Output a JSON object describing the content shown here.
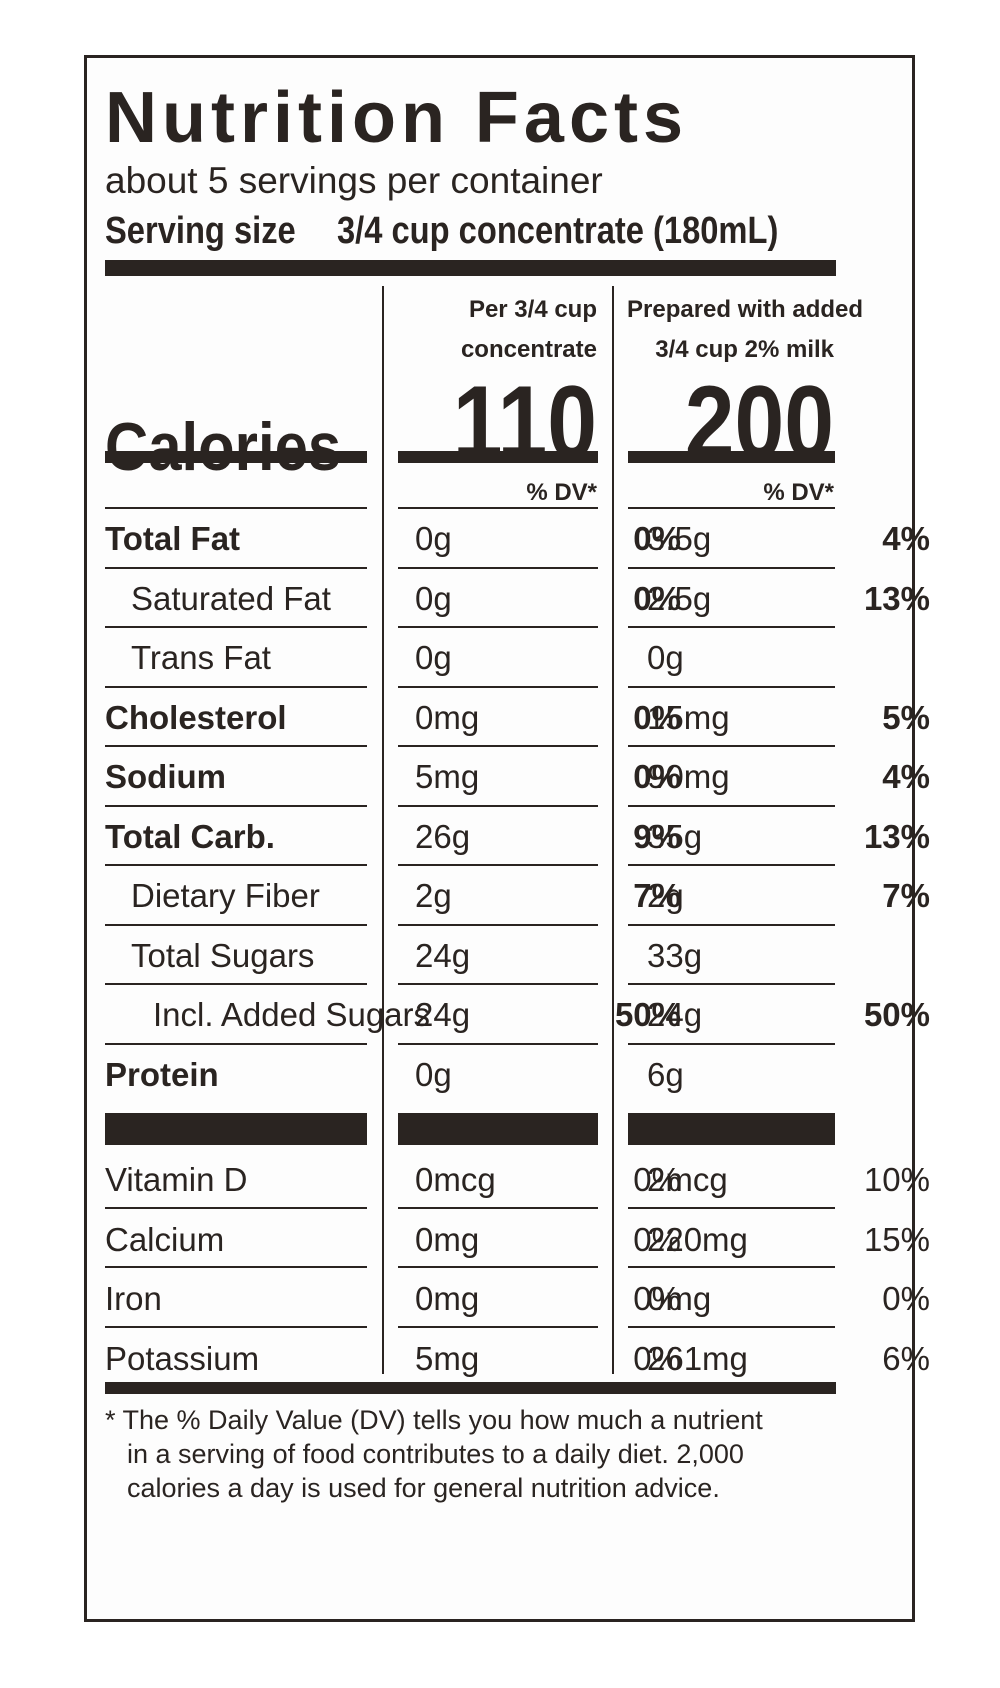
{
  "title": "Nutrition Facts",
  "servings_per_container": "about 5 servings per container",
  "serving_size": {
    "label": "Serving size",
    "value": "3/4 cup concentrate (180mL)"
  },
  "columns": [
    {
      "line1": "Per 3/4 cup",
      "line2": "concentrate",
      "calories": "110"
    },
    {
      "line1": "Prepared with added",
      "line2": "3/4 cup 2% milk",
      "calories": "200"
    }
  ],
  "calories_label": "Calories",
  "dv_header": "% DV*",
  "nutrients": [
    {
      "name": "Total Fat",
      "style": "bold",
      "c1_amount": "0g",
      "c1_dv": "0%",
      "c2_amount": "3.5g",
      "c2_dv": "4%"
    },
    {
      "name": "Saturated Fat",
      "style": "indent1",
      "c1_amount": "0g",
      "c1_dv": "0%",
      "c2_amount": "2.5g",
      "c2_dv": "13%"
    },
    {
      "name": "Trans Fat",
      "style": "indent1",
      "c1_amount": "0g",
      "c1_dv": "",
      "c2_amount": "0g",
      "c2_dv": ""
    },
    {
      "name": "Cholesterol",
      "style": "bold",
      "c1_amount": "0mg",
      "c1_dv": "0%",
      "c2_amount": "15mg",
      "c2_dv": "5%"
    },
    {
      "name": "Sodium",
      "style": "bold",
      "c1_amount": "5mg",
      "c1_dv": "0%",
      "c2_amount": "90mg",
      "c2_dv": "4%"
    },
    {
      "name": "Total Carb.",
      "style": "bold",
      "c1_amount": "26g",
      "c1_dv": "9%",
      "c2_amount": "35g",
      "c2_dv": "13%"
    },
    {
      "name": "Dietary Fiber",
      "style": "indent1",
      "c1_amount": "2g",
      "c1_dv": "7%",
      "c2_amount": "2g",
      "c2_dv": "7%"
    },
    {
      "name": "Total Sugars",
      "style": "indent1",
      "c1_amount": "24g",
      "c1_dv": "",
      "c2_amount": "33g",
      "c2_dv": ""
    },
    {
      "name": "Incl. Added Sugars",
      "style": "indent2",
      "c1_amount": "24g",
      "c1_dv": "50%",
      "c2_amount": "24g",
      "c2_dv": "50%"
    },
    {
      "name": "Protein",
      "style": "bold",
      "c1_amount": "0g",
      "c1_dv": "",
      "c2_amount": "6g",
      "c2_dv": ""
    }
  ],
  "vitamins": [
    {
      "name": "Vitamin D",
      "c1_amount": "0mcg",
      "c1_dv": "0%",
      "c2_amount": "2mcg",
      "c2_dv": "10%"
    },
    {
      "name": "Calcium",
      "c1_amount": "0mg",
      "c1_dv": "0%",
      "c2_amount": "220mg",
      "c2_dv": "15%"
    },
    {
      "name": "Iron",
      "c1_amount": "0mg",
      "c1_dv": "0%",
      "c2_amount": "0mg",
      "c2_dv": "0%"
    },
    {
      "name": "Potassium",
      "c1_amount": "5mg",
      "c1_dv": "0%",
      "c2_amount": "261mg",
      "c2_dv": "6%"
    }
  ],
  "footnote": [
    "* The % Daily Value (DV) tells you how much a nutrient",
    "in a serving of food contributes to a daily diet. 2,000",
    "calories a day is used for general nutrition advice."
  ],
  "colors": {
    "ink": "#2a2421",
    "background": "#ffffff"
  }
}
